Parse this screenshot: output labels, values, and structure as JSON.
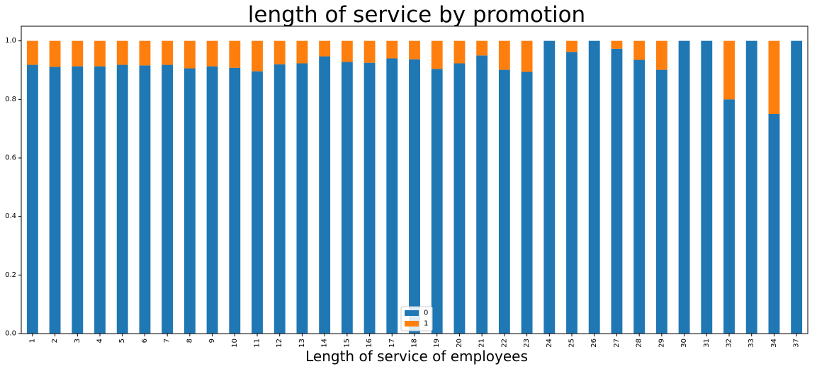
{
  "chart_data": {
    "type": "bar",
    "stacked": true,
    "title": "length of service by promotion",
    "xlabel": "Length of service of employees",
    "ylabel": "",
    "ylim": [
      0,
      1.05
    ],
    "yticks": [
      "0.0",
      "0.2",
      "0.4",
      "0.6",
      "0.8",
      "1.0"
    ],
    "grid": false,
    "legend_position": "bottom-center",
    "categories": [
      "1",
      "2",
      "3",
      "4",
      "5",
      "6",
      "7",
      "8",
      "9",
      "10",
      "11",
      "12",
      "13",
      "14",
      "15",
      "16",
      "17",
      "18",
      "19",
      "20",
      "21",
      "22",
      "23",
      "24",
      "25",
      "26",
      "27",
      "28",
      "29",
      "30",
      "31",
      "32",
      "33",
      "34",
      "37"
    ],
    "series": [
      {
        "name": "0",
        "color": "#1f77b4",
        "values": [
          0.918,
          0.911,
          0.913,
          0.913,
          0.918,
          0.916,
          0.918,
          0.906,
          0.913,
          0.908,
          0.896,
          0.92,
          0.923,
          0.947,
          0.928,
          0.925,
          0.94,
          0.937,
          0.904,
          0.923,
          0.95,
          0.901,
          0.894,
          1.0,
          0.962,
          1.0,
          0.973,
          0.935,
          0.901,
          1.0,
          1.0,
          0.8,
          1.0,
          0.75,
          1.0
        ]
      },
      {
        "name": "1",
        "color": "#ff7f0e",
        "values": [
          0.082,
          0.089,
          0.087,
          0.087,
          0.082,
          0.084,
          0.082,
          0.094,
          0.087,
          0.092,
          0.104,
          0.08,
          0.077,
          0.053,
          0.072,
          0.075,
          0.06,
          0.063,
          0.096,
          0.077,
          0.05,
          0.099,
          0.106,
          0.0,
          0.038,
          0.0,
          0.027,
          0.065,
          0.099,
          0.0,
          0.0,
          0.2,
          0.0,
          0.25,
          0.0
        ]
      }
    ]
  }
}
